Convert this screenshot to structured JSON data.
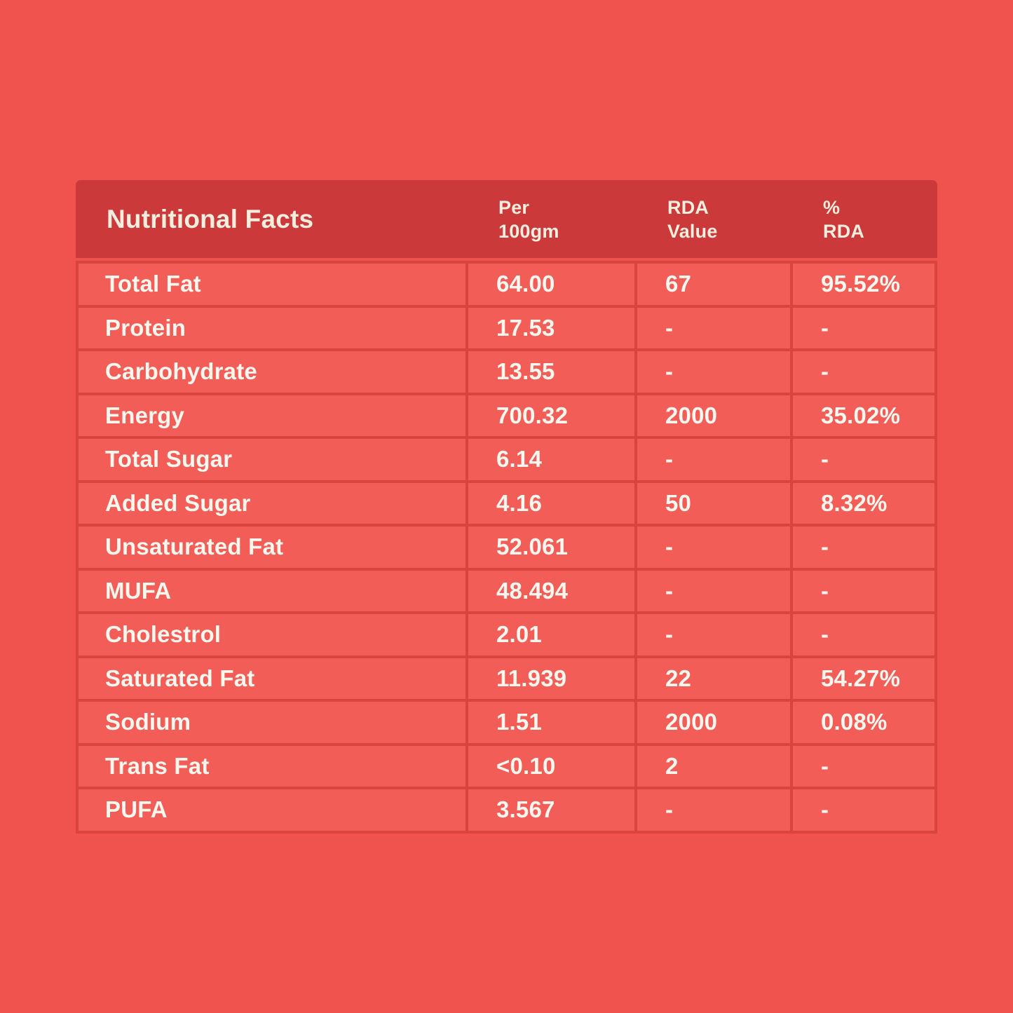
{
  "page": {
    "background_color": "#F0534E"
  },
  "colors": {
    "page_background": "#F0534E",
    "header_background": "#CC393B",
    "cell_background": "#F25D57",
    "grid_line": "#D9443F",
    "header_text": "#F5EEDE",
    "body_text": "#FBF7EF"
  },
  "chart_data": {
    "type": "table",
    "title": "Nutritional Facts",
    "columns": [
      "Nutritional Facts",
      "Per 100gm",
      "RDA Value",
      "% RDA"
    ],
    "column_labels": [
      "Nutritional Facts",
      "Per\n100gm",
      "RDA\nValue",
      "%\nRDA"
    ],
    "rows": [
      [
        "Total Fat",
        "64.00",
        "67",
        "95.52%"
      ],
      [
        "Protein",
        "17.53",
        "-",
        "-"
      ],
      [
        "Carbohydrate",
        "13.55",
        "-",
        "-"
      ],
      [
        "Energy",
        "700.32",
        "2000",
        "35.02%"
      ],
      [
        "Total Sugar",
        "6.14",
        "-",
        "-"
      ],
      [
        "Added Sugar",
        "4.16",
        "50",
        "8.32%"
      ],
      [
        "Unsaturated Fat",
        "52.061",
        "-",
        "-"
      ],
      [
        "MUFA",
        "48.494",
        "-",
        "-"
      ],
      [
        "Cholestrol",
        "2.01",
        "-",
        "-"
      ],
      [
        "Saturated Fat",
        "11.939",
        "22",
        "54.27%"
      ],
      [
        "Sodium",
        "1.51",
        "2000",
        "0.08%"
      ],
      [
        "Trans Fat",
        "<0.10",
        "2",
        "-"
      ],
      [
        "PUFA",
        "3.567",
        "-",
        "-"
      ]
    ]
  }
}
